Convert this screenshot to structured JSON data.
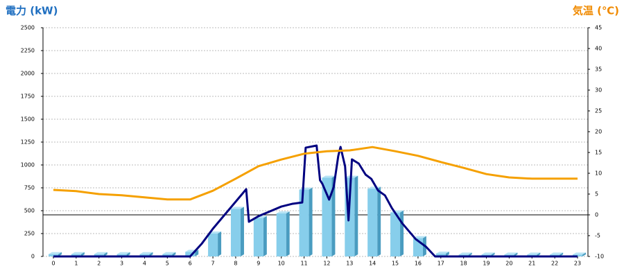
{
  "chart_data": {
    "type": "bar",
    "ylabel": "電力 (kW)",
    "y2label": "気温 (℃)",
    "categories": [
      "0",
      "1",
      "2",
      "3",
      "4",
      "5",
      "6",
      "7",
      "8",
      "9",
      "10",
      "11",
      "12",
      "13",
      "14",
      "15",
      "16",
      "17",
      "18",
      "19",
      "20",
      "21",
      "22",
      "23"
    ],
    "ylim": [
      0,
      2500
    ],
    "yticks": [
      0,
      250,
      500,
      750,
      1000,
      1250,
      1500,
      1750,
      2000,
      2250,
      2500
    ],
    "y2lim": [
      -10,
      45
    ],
    "y2ticks": [
      -10,
      -5,
      0,
      5,
      10,
      15,
      20,
      25,
      30,
      35,
      40,
      45
    ],
    "grid": true,
    "series": [
      {
        "type": "bar",
        "color": "#87ceeb",
        "values": [
          25,
          25,
          25,
          25,
          25,
          25,
          50,
          250,
          520,
          420,
          470,
          730,
          860,
          860,
          740,
          480,
          200,
          30,
          20,
          20,
          20,
          20,
          20,
          20
        ]
      },
      {
        "type": "line",
        "color": "#000080",
        "x": [
          0,
          6,
          6.5,
          7,
          8.46,
          8.58,
          9,
          10,
          10.5,
          10.92,
          11.07,
          11.55,
          11.7,
          11.8,
          12.1,
          12.3,
          12.5,
          12.6,
          12.8,
          12.95,
          13.1,
          13.4,
          13.7,
          13.95,
          14.25,
          14.55,
          14.85,
          15.3,
          15.9,
          16.35,
          16.75,
          23
        ],
        "values": [
          0,
          0,
          136,
          303,
          735,
          379,
          440,
          545,
          576,
          590,
          1189,
          1212,
          833,
          795,
          621,
          758,
          1098,
          1197,
          985,
          394,
          1061,
          1015,
          894,
          848,
          720,
          667,
          530,
          364,
          189,
          106,
          0,
          0
        ]
      },
      {
        "type": "line",
        "axis": "y2",
        "color": "#f5a000",
        "values": [
          6.0,
          5.7,
          5.0,
          4.7,
          4.2,
          3.7,
          3.7,
          5.8,
          8.7,
          11.7,
          13.3,
          14.7,
          15.3,
          15.5,
          16.3,
          15.3,
          14.2,
          12.7,
          11.3,
          9.8,
          9.0,
          8.7,
          8.7,
          8.7
        ]
      }
    ]
  }
}
